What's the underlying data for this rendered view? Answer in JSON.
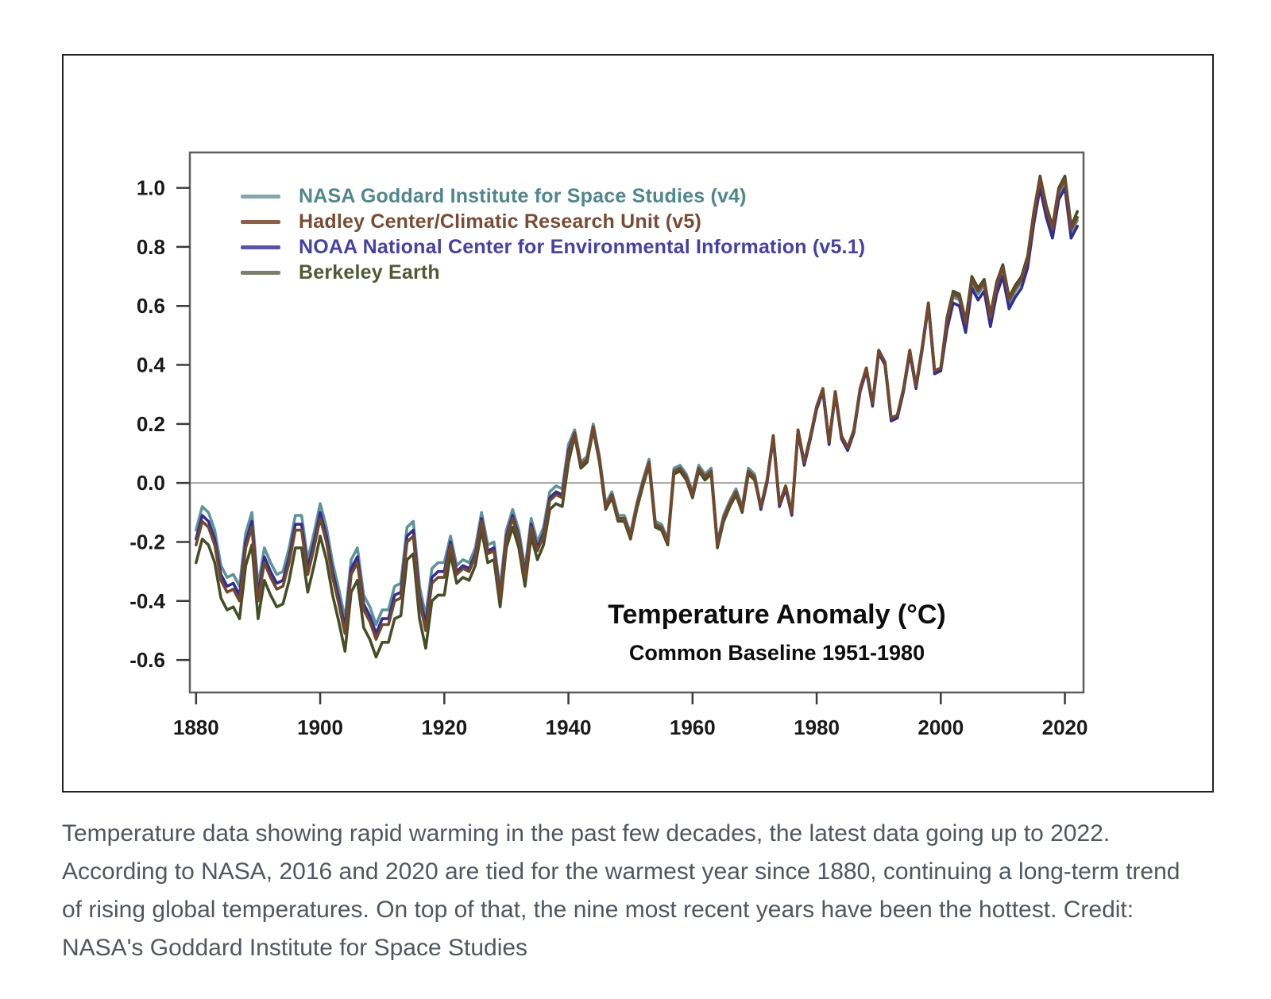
{
  "caption": {
    "text": "Temperature data showing rapid warming in the past few decades, the latest data going up to 2022. According to NASA, 2016 and 2020 are tied for the warmest year since 1880, continuing a long-term trend of rising global temperatures. On top of that, the nine most recent years have been the hottest. Credit: NASA's Goddard Institute for Space Studies"
  },
  "chart_data": {
    "type": "line",
    "title": "Temperature Anomaly (°C)",
    "subtitle": "Common Baseline 1951-1980",
    "years": {
      "start": 1880,
      "end": 2022,
      "step": 1
    },
    "xlim": [
      1879,
      2023
    ],
    "ylim": [
      -0.71,
      1.12
    ],
    "x_ticks": [
      1880,
      1900,
      1920,
      1940,
      1960,
      1980,
      2000,
      2020
    ],
    "y_ticks": [
      -0.6,
      -0.4,
      -0.2,
      0.0,
      0.2,
      0.4,
      0.6,
      0.8,
      1.0
    ],
    "grid": "horizontal zero line only",
    "zero_line_color": "#a3a3a3",
    "legend_position": "top-left",
    "series": [
      {
        "name": "NASA Goddard Institute for Space Studies (v4)",
        "color": "#5e9397",
        "legend_line_color": "#82a8ab",
        "label_color": "#4e878c",
        "values": [
          -0.16,
          -0.08,
          -0.1,
          -0.16,
          -0.28,
          -0.32,
          -0.31,
          -0.35,
          -0.17,
          -0.1,
          -0.35,
          -0.22,
          -0.27,
          -0.31,
          -0.3,
          -0.22,
          -0.11,
          -0.11,
          -0.26,
          -0.17,
          -0.07,
          -0.15,
          -0.27,
          -0.36,
          -0.46,
          -0.26,
          -0.22,
          -0.38,
          -0.42,
          -0.48,
          -0.43,
          -0.43,
          -0.35,
          -0.34,
          -0.15,
          -0.13,
          -0.35,
          -0.45,
          -0.29,
          -0.27,
          -0.27,
          -0.18,
          -0.28,
          -0.26,
          -0.27,
          -0.22,
          -0.1,
          -0.21,
          -0.2,
          -0.36,
          -0.16,
          -0.09,
          -0.16,
          -0.29,
          -0.12,
          -0.2,
          -0.15,
          -0.03,
          -0.01,
          -0.02,
          0.13,
          0.18,
          0.07,
          0.09,
          0.2,
          0.09,
          -0.07,
          -0.03,
          -0.11,
          -0.11,
          -0.17,
          -0.07,
          0.01,
          0.08,
          -0.13,
          -0.14,
          -0.19,
          0.05,
          0.06,
          0.03,
          -0.03,
          0.06,
          0.03,
          0.05,
          -0.2,
          -0.11,
          -0.06,
          -0.02,
          -0.08,
          0.05,
          0.03,
          -0.08,
          0.01,
          0.16,
          -0.07,
          -0.01,
          -0.1,
          0.18,
          0.07,
          0.16,
          0.26,
          0.32,
          0.14,
          0.31,
          0.16,
          0.12,
          0.18,
          0.32,
          0.39,
          0.27,
          0.45,
          0.41,
          0.22,
          0.23,
          0.32,
          0.45,
          0.33,
          0.46,
          0.61,
          0.38,
          0.39,
          0.54,
          0.63,
          0.62,
          0.53,
          0.68,
          0.64,
          0.67,
          0.55,
          0.66,
          0.72,
          0.61,
          0.65,
          0.68,
          0.75,
          0.9,
          1.02,
          0.92,
          0.85,
          0.98,
          1.02,
          0.85,
          0.89
        ]
      },
      {
        "name": "Hadley Center/Climatic Research Unit (v5)",
        "color": "#74482a",
        "legend_line_color": "#8f5f46",
        "label_color": "#7b4a33",
        "values": [
          -0.21,
          -0.13,
          -0.15,
          -0.21,
          -0.33,
          -0.37,
          -0.36,
          -0.4,
          -0.22,
          -0.15,
          -0.4,
          -0.27,
          -0.32,
          -0.36,
          -0.35,
          -0.27,
          -0.16,
          -0.16,
          -0.31,
          -0.22,
          -0.12,
          -0.2,
          -0.32,
          -0.41,
          -0.51,
          -0.31,
          -0.27,
          -0.43,
          -0.47,
          -0.53,
          -0.48,
          -0.48,
          -0.4,
          -0.39,
          -0.2,
          -0.18,
          -0.4,
          -0.5,
          -0.34,
          -0.32,
          -0.32,
          -0.21,
          -0.31,
          -0.29,
          -0.3,
          -0.25,
          -0.13,
          -0.24,
          -0.23,
          -0.39,
          -0.19,
          -0.12,
          -0.19,
          -0.32,
          -0.15,
          -0.23,
          -0.18,
          -0.06,
          -0.04,
          -0.05,
          0.1,
          0.17,
          0.06,
          0.08,
          0.19,
          0.08,
          -0.08,
          -0.04,
          -0.12,
          -0.12,
          -0.18,
          -0.08,
          0.0,
          0.07,
          -0.14,
          -0.15,
          -0.2,
          0.04,
          0.05,
          0.02,
          -0.04,
          0.05,
          0.02,
          0.04,
          -0.21,
          -0.12,
          -0.07,
          -0.03,
          -0.09,
          0.04,
          0.02,
          -0.08,
          0.01,
          0.16,
          -0.07,
          -0.01,
          -0.1,
          0.18,
          0.07,
          0.16,
          0.26,
          0.32,
          0.14,
          0.31,
          0.16,
          0.12,
          0.18,
          0.32,
          0.39,
          0.27,
          0.45,
          0.41,
          0.22,
          0.23,
          0.32,
          0.45,
          0.33,
          0.46,
          0.61,
          0.38,
          0.39,
          0.55,
          0.64,
          0.63,
          0.54,
          0.69,
          0.65,
          0.68,
          0.56,
          0.67,
          0.73,
          0.62,
          0.66,
          0.69,
          0.76,
          0.91,
          1.03,
          0.93,
          0.86,
          0.99,
          1.03,
          0.86,
          0.9
        ]
      },
      {
        "name": "NOAA National Center for Environmental Information (v5.1)",
        "color": "#332d96",
        "legend_line_color": "#5a54a8",
        "label_color": "#4641a8",
        "values": [
          -0.19,
          -0.11,
          -0.13,
          -0.19,
          -0.31,
          -0.35,
          -0.34,
          -0.38,
          -0.2,
          -0.13,
          -0.38,
          -0.25,
          -0.3,
          -0.34,
          -0.33,
          -0.25,
          -0.14,
          -0.14,
          -0.29,
          -0.2,
          -0.1,
          -0.18,
          -0.3,
          -0.39,
          -0.49,
          -0.29,
          -0.25,
          -0.41,
          -0.45,
          -0.51,
          -0.46,
          -0.46,
          -0.38,
          -0.37,
          -0.18,
          -0.16,
          -0.38,
          -0.48,
          -0.32,
          -0.3,
          -0.3,
          -0.2,
          -0.3,
          -0.28,
          -0.29,
          -0.24,
          -0.12,
          -0.23,
          -0.22,
          -0.38,
          -0.18,
          -0.11,
          -0.18,
          -0.31,
          -0.14,
          -0.22,
          -0.17,
          -0.05,
          -0.03,
          -0.04,
          0.11,
          0.17,
          0.06,
          0.08,
          0.19,
          0.08,
          -0.08,
          -0.04,
          -0.12,
          -0.12,
          -0.18,
          -0.08,
          0.0,
          0.07,
          -0.14,
          -0.15,
          -0.2,
          0.04,
          0.05,
          0.02,
          -0.04,
          0.05,
          0.02,
          0.04,
          -0.21,
          -0.12,
          -0.07,
          -0.03,
          -0.09,
          0.04,
          0.02,
          -0.09,
          0.0,
          0.15,
          -0.08,
          -0.02,
          -0.11,
          0.17,
          0.06,
          0.15,
          0.25,
          0.31,
          0.13,
          0.3,
          0.15,
          0.11,
          0.17,
          0.31,
          0.38,
          0.26,
          0.44,
          0.4,
          0.21,
          0.22,
          0.31,
          0.44,
          0.32,
          0.45,
          0.6,
          0.37,
          0.38,
          0.52,
          0.61,
          0.6,
          0.51,
          0.66,
          0.62,
          0.65,
          0.53,
          0.64,
          0.7,
          0.59,
          0.63,
          0.66,
          0.73,
          0.88,
          1.0,
          0.9,
          0.83,
          0.96,
          1.0,
          0.83,
          0.87
        ]
      },
      {
        "name": "Berkeley Earth",
        "color": "#444f28",
        "legend_line_color": "#7f7f6a",
        "label_color": "#4f5a35",
        "values": [
          -0.27,
          -0.19,
          -0.21,
          -0.27,
          -0.39,
          -0.43,
          -0.42,
          -0.46,
          -0.28,
          -0.21,
          -0.46,
          -0.33,
          -0.38,
          -0.42,
          -0.41,
          -0.33,
          -0.22,
          -0.22,
          -0.37,
          -0.28,
          -0.18,
          -0.26,
          -0.38,
          -0.47,
          -0.57,
          -0.37,
          -0.33,
          -0.49,
          -0.53,
          -0.59,
          -0.54,
          -0.54,
          -0.46,
          -0.45,
          -0.26,
          -0.24,
          -0.46,
          -0.56,
          -0.4,
          -0.38,
          -0.38,
          -0.24,
          -0.34,
          -0.32,
          -0.33,
          -0.28,
          -0.16,
          -0.27,
          -0.26,
          -0.42,
          -0.22,
          -0.15,
          -0.22,
          -0.35,
          -0.18,
          -0.26,
          -0.21,
          -0.09,
          -0.07,
          -0.08,
          0.07,
          0.16,
          0.05,
          0.07,
          0.18,
          0.07,
          -0.09,
          -0.05,
          -0.13,
          -0.13,
          -0.19,
          -0.09,
          -0.01,
          0.06,
          -0.15,
          -0.16,
          -0.21,
          0.03,
          0.04,
          0.01,
          -0.05,
          0.04,
          0.01,
          0.03,
          -0.22,
          -0.13,
          -0.08,
          -0.04,
          -0.1,
          0.03,
          0.01,
          -0.08,
          0.01,
          0.16,
          -0.07,
          -0.01,
          -0.1,
          0.18,
          0.07,
          0.16,
          0.26,
          0.32,
          0.14,
          0.31,
          0.16,
          0.12,
          0.18,
          0.32,
          0.39,
          0.27,
          0.45,
          0.41,
          0.22,
          0.23,
          0.32,
          0.45,
          0.33,
          0.46,
          0.61,
          0.38,
          0.39,
          0.56,
          0.65,
          0.64,
          0.55,
          0.7,
          0.66,
          0.69,
          0.57,
          0.68,
          0.74,
          0.63,
          0.67,
          0.7,
          0.77,
          0.92,
          1.04,
          0.94,
          0.87,
          1.0,
          1.04,
          0.87,
          0.92
        ]
      }
    ]
  }
}
